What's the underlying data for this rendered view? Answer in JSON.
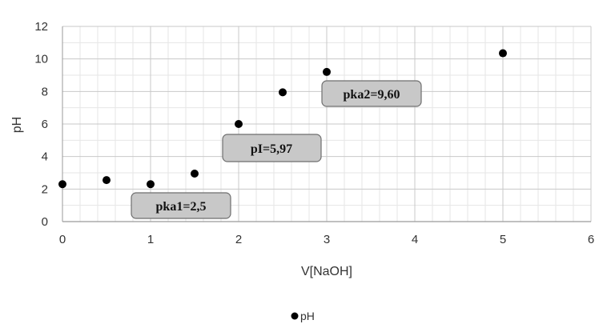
{
  "chart_data": {
    "type": "scatter",
    "xlabel": "V[NaOH]",
    "ylabel": "pH",
    "xlim": [
      0,
      6
    ],
    "ylim": [
      0,
      12
    ],
    "x_ticks": [
      0,
      1,
      2,
      3,
      4,
      5,
      6
    ],
    "y_ticks": [
      0,
      2,
      4,
      6,
      8,
      10,
      12
    ],
    "grid": true,
    "legend_position": "bottom",
    "series": [
      {
        "name": "pH",
        "color": "#000000",
        "x": [
          0,
          0.5,
          1,
          1.5,
          2,
          2.5,
          3,
          5
        ],
        "y": [
          2.3,
          2.55,
          2.3,
          2.95,
          6.0,
          7.95,
          9.2,
          10.35
        ]
      }
    ],
    "annotations": [
      {
        "text": "pka1=2,5",
        "x": 1.35,
        "y": 1.0
      },
      {
        "text": "pI=5,97",
        "x": 2.3,
        "y": 4.5
      },
      {
        "text": "pka2=9,60",
        "x": 3.25,
        "y": 7.85
      }
    ]
  }
}
